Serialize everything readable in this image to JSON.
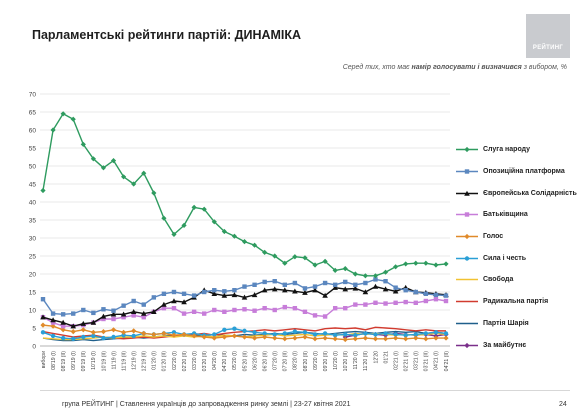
{
  "title": "Парламентські рейтинги партій: ДИНАМІКА",
  "logo_text": "РЕЙТИНГ",
  "subtitle_prefix": "Серед тих, хто має ",
  "subtitle_bold": "намір голосувати і визначився",
  "subtitle_suffix": " з вибором, %",
  "footer": "група РЕЙТИНГ | Ставлення українців до запровадження ринку землі | 23-27 квітня 2021",
  "page_number": "24",
  "chart_data": {
    "type": "line",
    "ylim": [
      0,
      70
    ],
    "yticks": [
      0,
      5,
      10,
      15,
      20,
      25,
      30,
      35,
      40,
      45,
      50,
      55,
      60,
      65,
      70
    ],
    "grid": "horizontal",
    "legend_position": "right",
    "x": [
      "вибори",
      "08'19 (I)",
      "08'19 (II)",
      "09'19 (I)",
      "09'19 (II)",
      "10'19 (I)",
      "10'19 (II)",
      "11'19 (I)",
      "11'19 (II)",
      "12'19 (I)",
      "12'19 (II)",
      "01'20 (I)",
      "01'20 (II)",
      "02'20 (I)",
      "02'20 (II)",
      "03'20 (I)",
      "03'20 (II)",
      "04'20 (I)",
      "04'20 (II)",
      "05'20 (I)",
      "05'20 (II)",
      "06'20 (I)",
      "06'20 (II)",
      "07'20 (I)",
      "07'20 (II)",
      "08'20 (I)",
      "08'20 (II)",
      "09'20 (I)",
      "09'20 (II)",
      "10'20 (I)",
      "10'20 (II)",
      "11'20 (I)",
      "11'20 (II)",
      "12'20",
      "01'21",
      "02'21 (I)",
      "02'21 (II)",
      "03'21 (I)",
      "03'21 (II)",
      "04'21 (I)",
      "04'21 (II)"
    ],
    "xticks_shown": [
      "вибори",
      "08'19 (I)",
      "08'19 (II)",
      "09'19 (I)",
      "09'19 (II)",
      "10'19 (I)",
      "10'19 (II)",
      "11'19 (I)",
      "11'19 (II)",
      "12'19 (I)",
      "12'19 (II)",
      "01'20 (I)",
      "01'20 (II)",
      "02'20 (I)",
      "02'20 (II)",
      "03'20 (I)",
      "03'20 (II)",
      "04'20 (I)",
      "04'20 (II)",
      "05'20 (I)",
      "05'20 (II)",
      "06'20 (I)",
      "06'20 (II)",
      "07'20 (I)",
      "07'20 (II)",
      "08'20 (I)",
      "08'20 (II)",
      "09'20 (I)",
      "09'20 (II)",
      "10'20 (I)",
      "10'20 (II)",
      "11'20 (I)",
      "11'20 (II)",
      "12'20",
      "01'21",
      "02'21 (I)",
      "02'21 (II)",
      "03'21 (I)",
      "03'21 (II)",
      "04'21 (I)",
      "04'21 (II)"
    ],
    "series": [
      {
        "name": "Слуга народу",
        "color": "#2e9b5f",
        "marker": "diamond",
        "values": [
          43.2,
          60,
          64.5,
          63,
          56,
          52,
          49.5,
          51.5,
          47,
          45,
          48,
          42.5,
          35.5,
          31,
          33.5,
          38.5,
          38,
          34.5,
          31.8,
          30.5,
          29,
          28,
          26,
          25,
          23,
          24.8,
          24.5,
          22.5,
          23.5,
          21,
          21.5,
          20,
          19.5,
          19.5,
          20.5,
          22,
          22.8,
          23,
          23,
          22.5,
          22.8
        ]
      },
      {
        "name": "Опозиційна платформа",
        "color": "#5b87bf",
        "marker": "square",
        "values": [
          13,
          9,
          8.8,
          9,
          10,
          9.2,
          10.2,
          9.8,
          11.2,
          12.5,
          11.5,
          13.5,
          14.5,
          15,
          14.5,
          14,
          15,
          15.5,
          15.2,
          15.5,
          16.5,
          17,
          17.8,
          18,
          17,
          17.5,
          16,
          16.5,
          17.5,
          17,
          17.8,
          17,
          17.5,
          18.5,
          18,
          16.2,
          15.5,
          15,
          14.5,
          14.2,
          14
        ]
      },
      {
        "name": "Європейська Солідарність",
        "color": "#111111",
        "marker": "triangle",
        "values": [
          8,
          7.2,
          6.5,
          5.5,
          6.2,
          6.5,
          8.2,
          8.8,
          8.8,
          9.5,
          9,
          9.5,
          11.5,
          12.5,
          12.2,
          13.5,
          15.5,
          14.5,
          14,
          14.2,
          13.5,
          14.2,
          15.5,
          15.8,
          15.5,
          15.2,
          14.8,
          15.5,
          14,
          16.2,
          15.8,
          16,
          15,
          16.5,
          15.8,
          15.2,
          16.2,
          15,
          14.8,
          14.5,
          14.2
        ]
      },
      {
        "name": "Батьківщина",
        "color": "#c77dd9",
        "marker": "square",
        "values": [
          8,
          6.5,
          5.5,
          5.5,
          5.8,
          6.5,
          7.5,
          7.5,
          8,
          8.5,
          8,
          9.5,
          10.5,
          10.5,
          9,
          9.5,
          9,
          10,
          9.5,
          10,
          10.2,
          9.8,
          10.5,
          10,
          10.8,
          10.5,
          9.5,
          8.5,
          8.2,
          10.5,
          10.5,
          11.5,
          11.5,
          12,
          11.8,
          12,
          12.2,
          12,
          12.5,
          13,
          12.5
        ]
      },
      {
        "name": "Голос",
        "color": "#e08a2a",
        "marker": "diamond",
        "values": [
          5.8,
          5.5,
          4.5,
          4,
          4.5,
          3.8,
          4,
          4.5,
          3.8,
          4.2,
          3.5,
          3.2,
          3.5,
          3,
          3.2,
          2.8,
          2.5,
          2.2,
          2.5,
          2.8,
          2.5,
          2.2,
          2.5,
          2.2,
          2,
          2.2,
          2.5,
          2,
          2.2,
          2,
          1.8,
          2,
          2.2,
          2,
          2,
          2.2,
          2,
          2.2,
          2,
          2.2,
          2.2
        ]
      },
      {
        "name": "Сила і честь",
        "color": "#2a9fd6",
        "marker": "circle",
        "values": [
          3.8,
          2.8,
          2.2,
          2,
          2.5,
          2.8,
          2.2,
          2.5,
          3,
          2.8,
          3.5,
          3.2,
          3.5,
          3.8,
          3.2,
          3.5,
          3,
          3.2,
          4.5,
          4.8,
          4.2,
          3.8,
          3.5,
          3.2,
          3.5,
          4,
          3.8,
          3.2,
          3.5,
          3,
          3.2,
          3,
          3.5,
          3.2,
          3.5,
          3.2,
          3,
          3.2,
          3.5,
          3.8,
          3.5
        ]
      },
      {
        "name": "Свобода",
        "color": "#f1c232",
        "marker": "none",
        "values": [
          2.2,
          2,
          1.8,
          1.8,
          2,
          2.2,
          2.5,
          2.2,
          2.5,
          2.5,
          2.8,
          2.5,
          2.8,
          2.5,
          2.8,
          2.5,
          2.8,
          2.5,
          3,
          2.8,
          2.5,
          2.8,
          3,
          3.2,
          2.8,
          3,
          3.2,
          2.8,
          3,
          3.2,
          3,
          3.5,
          3.2,
          3.5,
          3.2,
          3,
          3.2,
          3,
          3.2,
          3.5,
          3.2
        ]
      },
      {
        "name": "Радикальна партія",
        "color": "#d13b2f",
        "marker": "none",
        "values": [
          4,
          3.5,
          3,
          2.5,
          2.8,
          3,
          2.5,
          2.2,
          2,
          2.2,
          2.5,
          2.2,
          2.5,
          2.8,
          3,
          3.2,
          3.5,
          3,
          3.5,
          3.8,
          4,
          4.2,
          4.5,
          4.2,
          4.5,
          4.8,
          4.5,
          4.2,
          4.8,
          5,
          4.8,
          5,
          4.5,
          5.2,
          5,
          4.8,
          4.5,
          4.2,
          4.5,
          4.2,
          4.2
        ]
      },
      {
        "name": "Партія Шарія",
        "color": "#1f5f8b",
        "marker": "none",
        "values": [
          2.2,
          1.8,
          1.5,
          1.5,
          1.8,
          1.5,
          1.8,
          2,
          2.2,
          2.5,
          2.2,
          2.5,
          2.8,
          3,
          2.8,
          3,
          2.8,
          3.2,
          3,
          2.8,
          3.2,
          3,
          3.2,
          3.5,
          3.2,
          3.5,
          3.8,
          3.5,
          3.2,
          3.5,
          3.8,
          4,
          3.8,
          3.5,
          3.8,
          4,
          3.8,
          4,
          3.5,
          3.8,
          3.5
        ]
      },
      {
        "name": "За майбутнє",
        "color": "#7a2f8a",
        "marker": "diamond",
        "values": [
          null,
          null,
          null,
          null,
          null,
          null,
          null,
          null,
          null,
          null,
          null,
          null,
          null,
          null,
          null,
          null,
          null,
          null,
          null,
          null,
          null,
          null,
          null,
          null,
          null,
          null,
          null,
          null,
          null,
          null,
          2.5,
          3,
          3.5,
          3.2,
          3,
          3.5,
          3.2,
          3,
          3.2,
          2.8,
          3.2
        ]
      }
    ]
  }
}
